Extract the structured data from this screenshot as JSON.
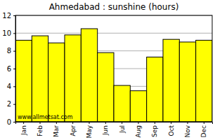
{
  "chart_data": {
    "type": "bar",
    "title": "Ahmedabad : sunshine (hours)",
    "categories": [
      "Jan",
      "Feb",
      "Mar",
      "Apr",
      "May",
      "Jun",
      "Jul",
      "Aug",
      "Sep",
      "Oct",
      "Nov",
      "Dec"
    ],
    "values": [
      9.2,
      9.7,
      8.9,
      9.8,
      10.5,
      7.8,
      4.1,
      3.5,
      7.3,
      9.3,
      9.0,
      9.2
    ],
    "color": "#ffff00",
    "ylim": [
      0,
      12
    ],
    "yticks": [
      0,
      2,
      4,
      6,
      8,
      10,
      12
    ],
    "grid": true,
    "annotations": [
      "www.allmetsat.com"
    ]
  }
}
